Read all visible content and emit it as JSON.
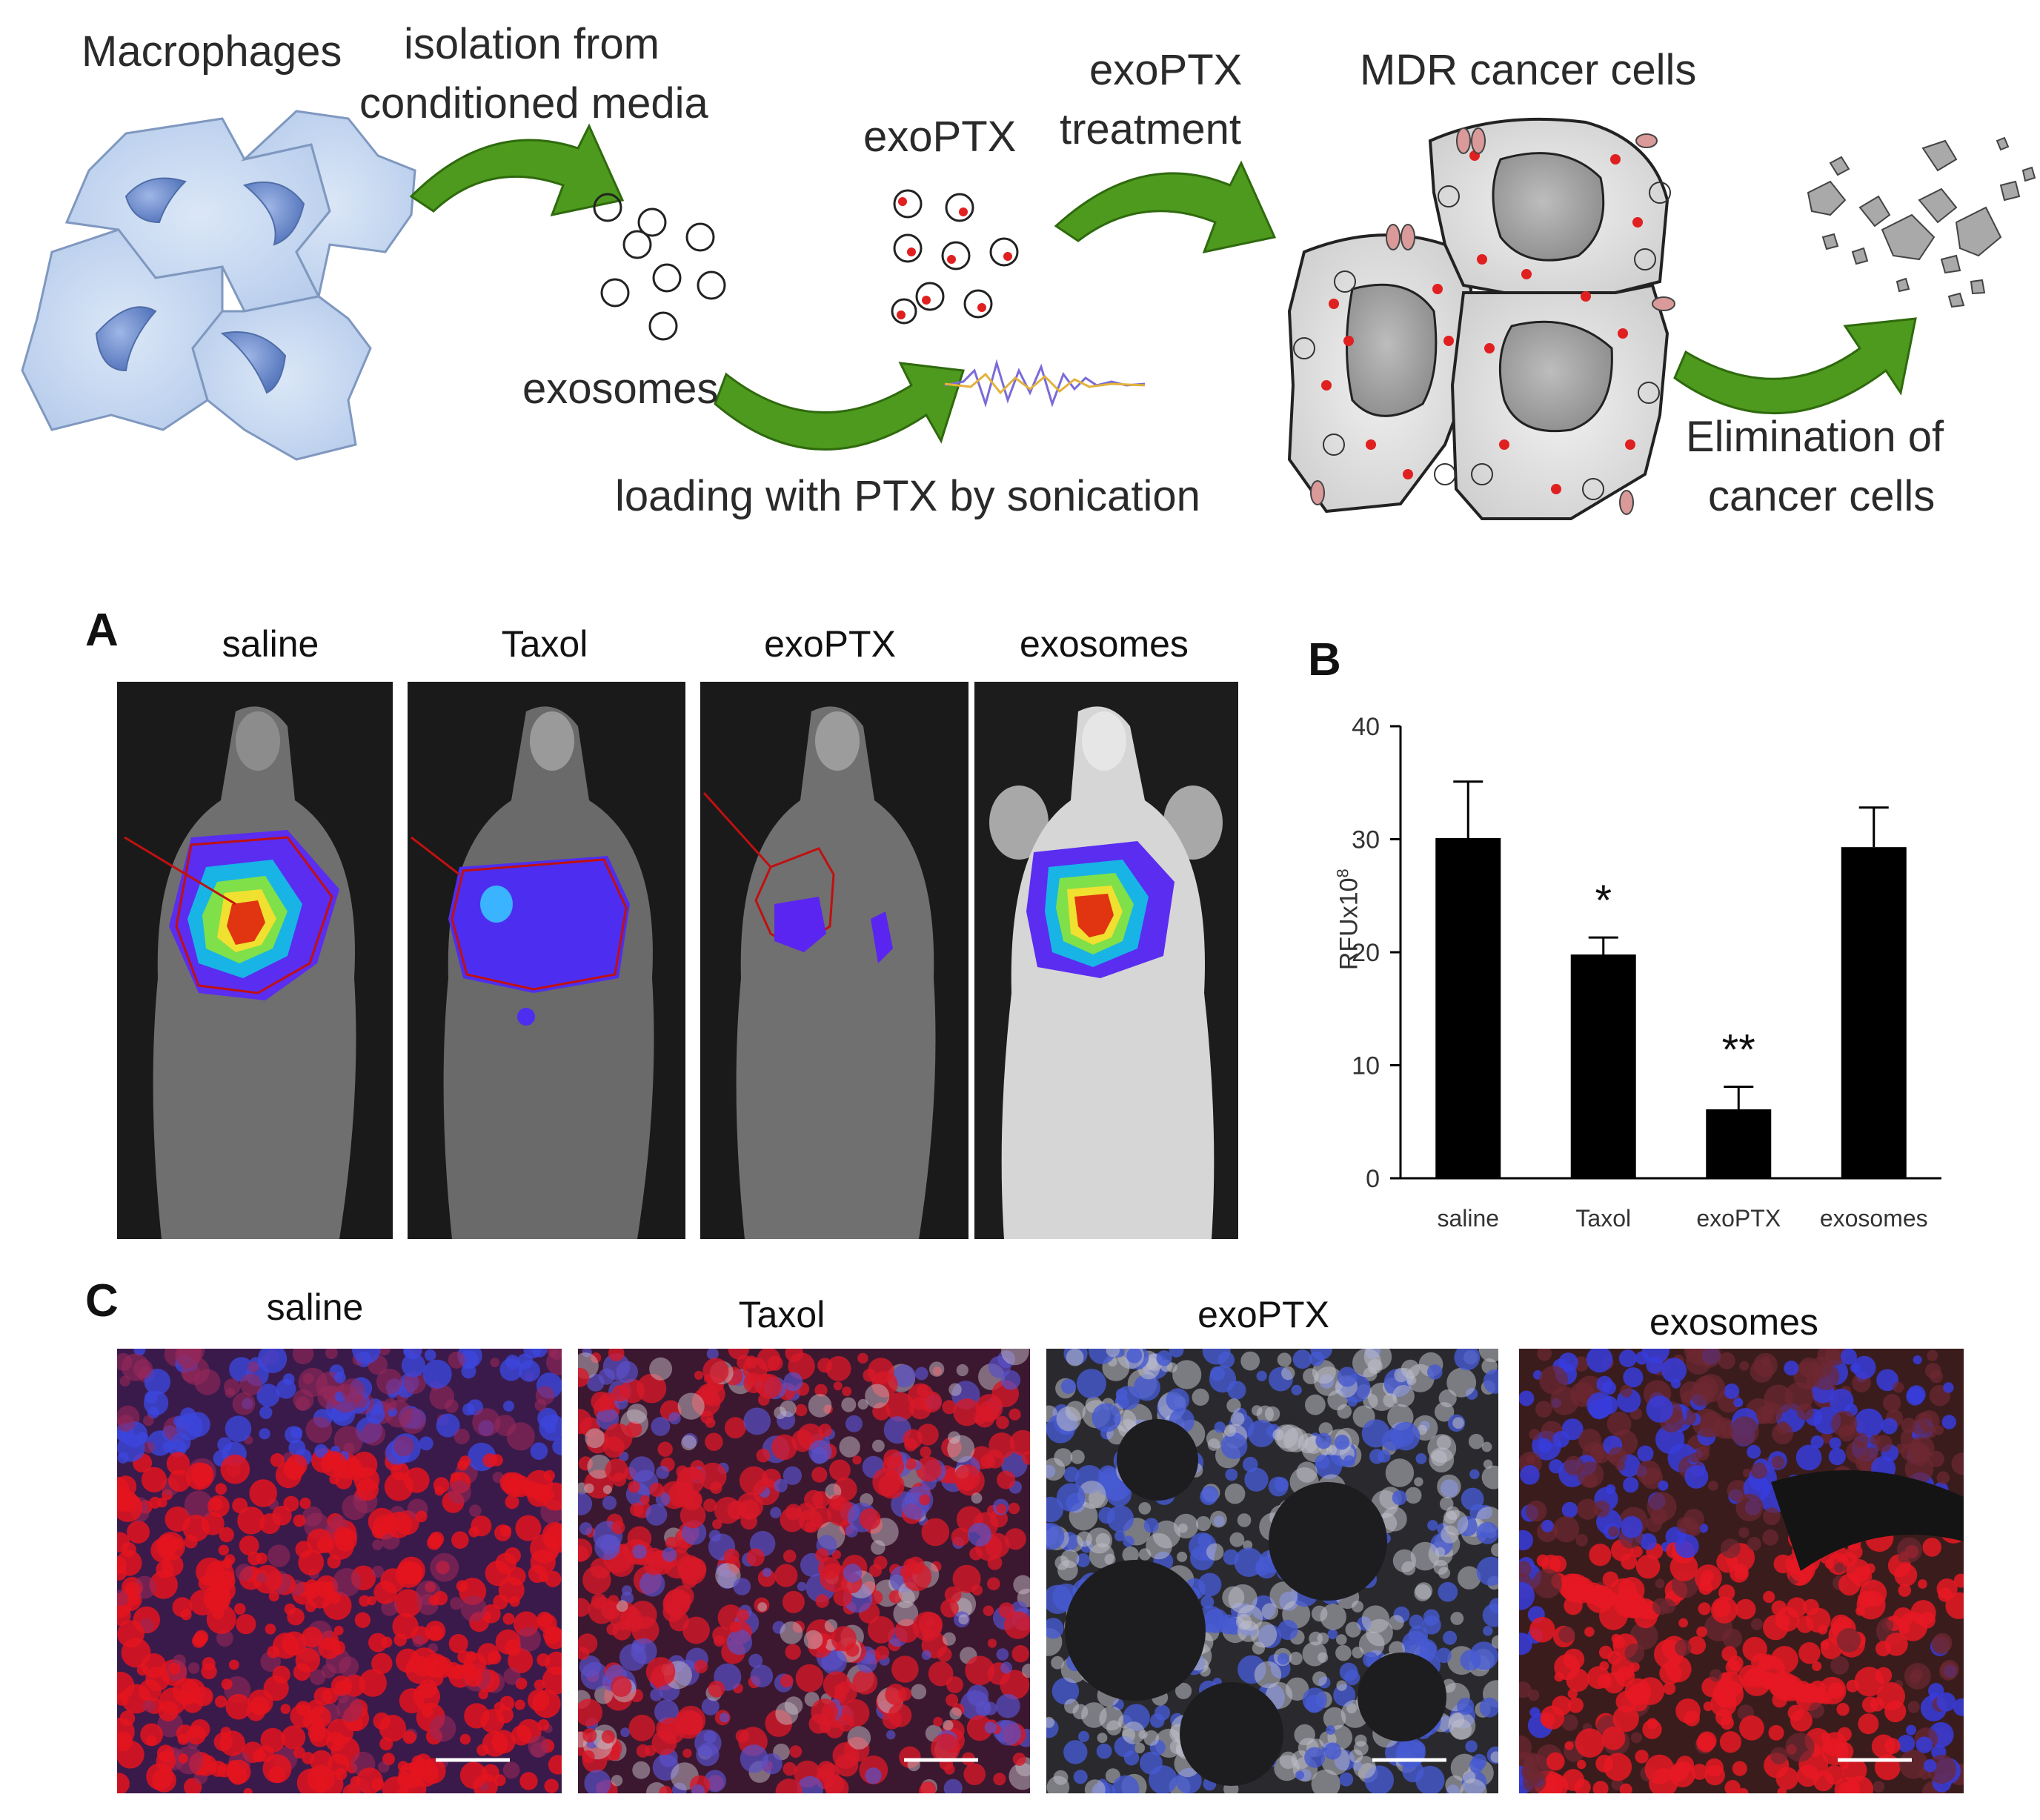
{
  "schematic": {
    "macrophages": "Macrophages",
    "isolation": [
      "isolation from",
      "conditioned media"
    ],
    "exosomes": "exosomes",
    "exoptx": "exoPTX",
    "treatment": [
      "exoPTX",
      "treatment"
    ],
    "mdr": "MDR cancer cells",
    "loading": "loading with PTX by sonication",
    "elimination": [
      "Elimination of",
      "cancer cells"
    ]
  },
  "panel_a": {
    "letter": "A",
    "titles": [
      "saline",
      "Taxol",
      "exoPTX",
      "exosomes"
    ]
  },
  "panel_b": {
    "letter": "B",
    "chart_data": {
      "type": "bar",
      "categories": [
        "saline",
        "Taxol",
        "exoPTX",
        "exosomes"
      ],
      "values": [
        30.1,
        19.8,
        6.1,
        29.3
      ],
      "errors": [
        5.0,
        1.5,
        2.0,
        3.5
      ],
      "annotations": [
        "",
        "*",
        "**",
        ""
      ],
      "ylabel": "RFUx10",
      "ylabel_sup": "8",
      "ylim": [
        0,
        40
      ],
      "yticks": [
        0,
        10,
        20,
        30,
        40
      ],
      "bar_color": "#000000"
    }
  },
  "panel_c": {
    "letter": "C",
    "titles": [
      "saline",
      "Taxol",
      "exoPTX",
      "exosomes"
    ]
  },
  "colors": {
    "arrow": "#4e9a1e",
    "cell_fill": "#c9dcf2",
    "nucleus": "#5d7fc4",
    "drug": "#e02020",
    "fluor_red": "#e4141e",
    "dapi_blue": "#3a4fd8"
  }
}
